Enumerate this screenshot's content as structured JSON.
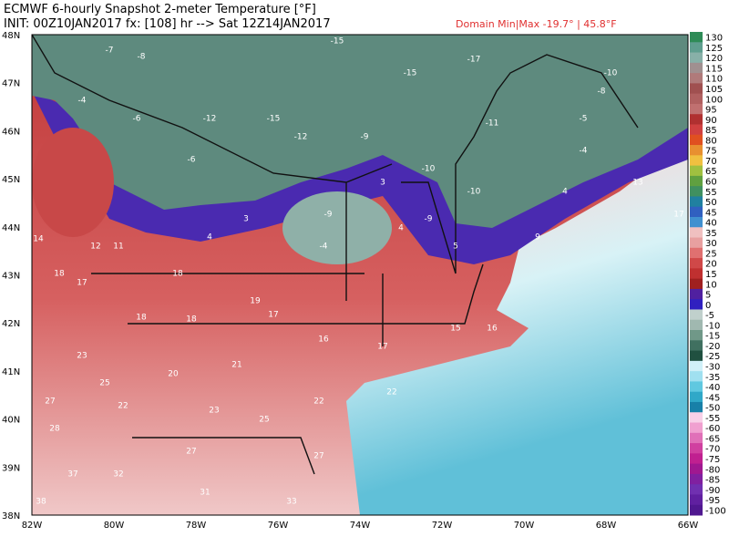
{
  "header": {
    "line1": "ECMWF 6-hourly Snapshot 2-meter Temperature [°F]",
    "line2": "INIT: 00Z10JAN2017   fx: [108] hr --> Sat 12Z14JAN2017",
    "domain": "Domain Min|Max -19.7° | 45.8°F"
  },
  "latitudes": [
    "48N",
    "47N",
    "46N",
    "45N",
    "44N",
    "43N",
    "42N",
    "41N",
    "40N",
    "39N",
    "38N"
  ],
  "longitudes": [
    "82W",
    "80W",
    "78W",
    "76W",
    "74W",
    "72W",
    "70W",
    "68W",
    "66W"
  ],
  "colorbar": {
    "labels": [
      130,
      125,
      120,
      115,
      110,
      105,
      100,
      95,
      90,
      85,
      80,
      75,
      70,
      65,
      60,
      55,
      50,
      45,
      40,
      35,
      30,
      25,
      20,
      15,
      10,
      5,
      0,
      -5,
      -10,
      -15,
      -20,
      -25,
      -30,
      -35,
      -40,
      -45,
      -50,
      -55,
      -60,
      -65,
      -70,
      -75,
      -80,
      -85,
      -90,
      -95,
      -100
    ],
    "colors": [
      "#2e8b57",
      "#5f9e8f",
      "#88b0a8",
      "#a09090",
      "#b07a7a",
      "#a05050",
      "#b06060",
      "#c07070",
      "#b03030",
      "#d04040",
      "#e05020",
      "#e89030",
      "#f0c040",
      "#a0c040",
      "#60a040",
      "#409060",
      "#2080a0",
      "#3060c0",
      "#4090d0",
      "#f0c0c0",
      "#e8a0a0",
      "#e07070",
      "#d04848",
      "#c03030",
      "#a02020",
      "#5020a0",
      "#3020c0",
      "#c0d0cc",
      "#a0b8b0",
      "#709888",
      "#407060",
      "#205040",
      "#d0f0f8",
      "#a0e0f0",
      "#60c8e0",
      "#30a8c8",
      "#1880a8",
      "#f8d0e8",
      "#f0a0d0",
      "#e070b8",
      "#d040a0",
      "#c02090",
      "#a01890",
      "#8020a0",
      "#7030b0",
      "#6020a0",
      "#501890"
    ]
  },
  "station_values": [
    -7,
    -8,
    -15,
    -15,
    -17,
    -15,
    -12,
    -6,
    -4,
    -6,
    -12,
    -9,
    -11,
    -4,
    -8,
    -10,
    -10,
    -10,
    -9,
    -9,
    -4,
    -5,
    11,
    12,
    3,
    4,
    3,
    4,
    5,
    9,
    4,
    13,
    17,
    14,
    18,
    17,
    18,
    19,
    18,
    18,
    17,
    16,
    17,
    15,
    16,
    23,
    25,
    27,
    28,
    22,
    20,
    21,
    23,
    25,
    22,
    22,
    27,
    32,
    37,
    38,
    31,
    33,
    27
  ]
}
